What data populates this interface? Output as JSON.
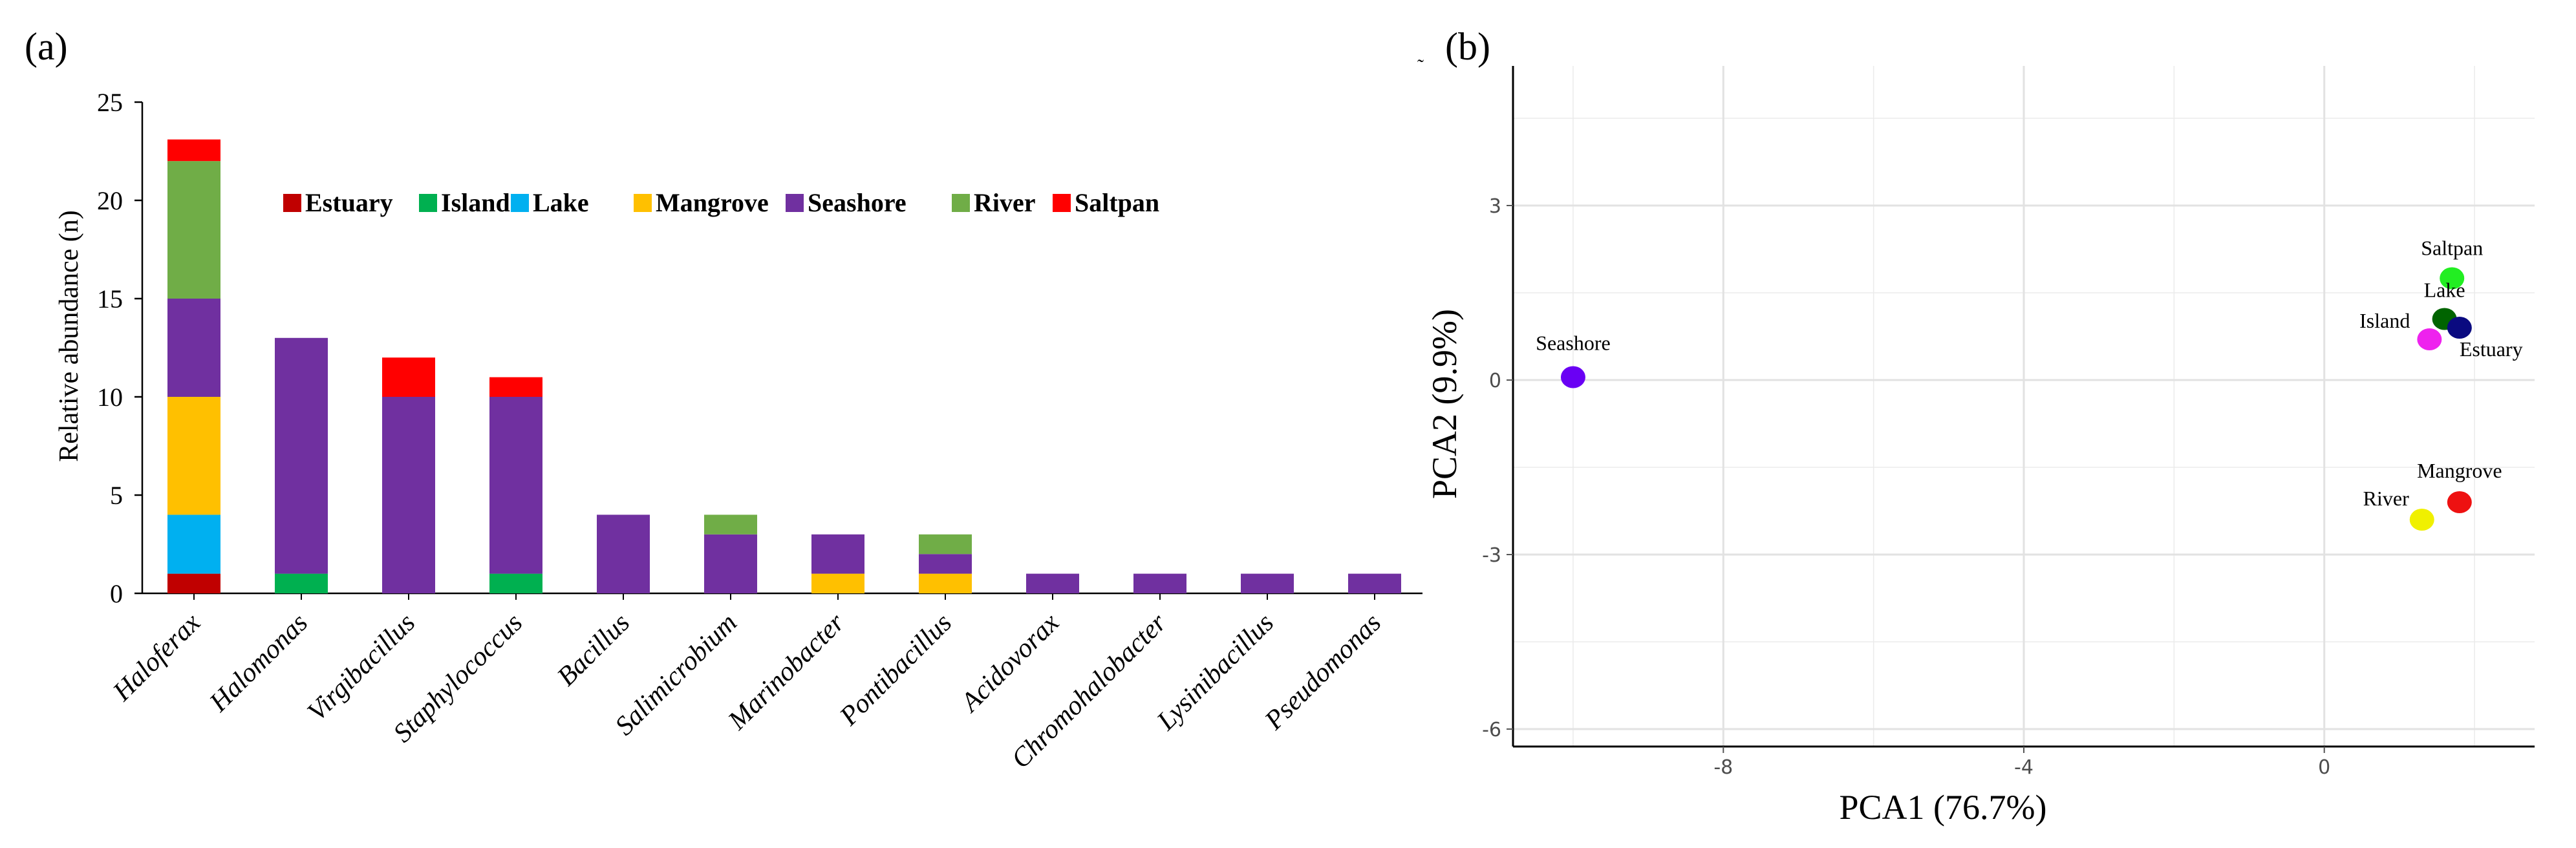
{
  "chart_data": [
    {
      "panel_label": "(a)",
      "type": "bar",
      "stacked": true,
      "ylabel": "Relative abundance (n)",
      "xlabel": "",
      "ylim": [
        0,
        25
      ],
      "yticks": [
        "0",
        "5",
        "10",
        "15",
        "20",
        "25"
      ],
      "legend_position": "top-right",
      "categories": [
        "Haloferax",
        "Halomonas",
        "Virgibacillus",
        "Staphylococcus",
        "Bacillus",
        "Salimicrobium",
        "Marinobacter",
        "Pontibacillus",
        "Acidovorax",
        "Chromohalobacter",
        "Lysinibacillus",
        "Pseudomonas"
      ],
      "series": [
        {
          "name": "Estuary",
          "color": "#c00000",
          "values": [
            1,
            0,
            0,
            0,
            0,
            0,
            0,
            0,
            0,
            0,
            0,
            0
          ]
        },
        {
          "name": "Island",
          "color": "#00b050",
          "values": [
            0,
            1,
            0,
            1,
            0,
            0,
            0,
            0,
            0,
            0,
            0,
            0
          ]
        },
        {
          "name": "Lake",
          "color": "#00b0f0",
          "values": [
            3,
            0,
            0,
            0,
            0,
            0,
            0,
            0,
            0,
            0,
            0,
            0
          ]
        },
        {
          "name": "Mangrove",
          "color": "#ffc000",
          "values": [
            6,
            0,
            0,
            0,
            0,
            0,
            1,
            1,
            0,
            0,
            0,
            0
          ]
        },
        {
          "name": "Seashore",
          "color": "#7030a0",
          "values": [
            5,
            12,
            10,
            9,
            4,
            3,
            2,
            1,
            1,
            1,
            1,
            1
          ]
        },
        {
          "name": "River",
          "color": "#70ad47",
          "values": [
            7,
            0,
            0,
            0,
            0,
            1,
            0,
            1,
            0,
            0,
            0,
            0
          ]
        },
        {
          "name": "Saltpan",
          "color": "#ff0000",
          "values": [
            1.1,
            0,
            2,
            1,
            0,
            0,
            0,
            0,
            0,
            0,
            0,
            0
          ]
        }
      ]
    },
    {
      "panel_label": "(b)",
      "type": "scatter",
      "xlabel": "PCA1 (76.7%)",
      "ylabel": "PCA2 (9.9%)",
      "xlim": [
        -10.8,
        2.8
      ],
      "ylim": [
        -6.3,
        5.4
      ],
      "xticks": [
        -8,
        -4,
        0
      ],
      "yticks": [
        3,
        0,
        -3,
        -6
      ],
      "xtick_labels": [
        "-8",
        "-4",
        "0"
      ],
      "ytick_labels": [
        "3",
        "0",
        "-3",
        "-6"
      ],
      "grid": true,
      "corner_mark": "˜",
      "points": [
        {
          "label": "Seashore",
          "x": -10.0,
          "y": 0.05,
          "color": "#6a00f4"
        },
        {
          "label": "Saltpan",
          "x": 1.7,
          "y": 1.75,
          "color": "#22ee22"
        },
        {
          "label": "Lake",
          "x": 1.6,
          "y": 1.05,
          "color": "#006400"
        },
        {
          "label": "Island",
          "x": 1.4,
          "y": 0.7,
          "color": "#ee22ee"
        },
        {
          "label": "Estuary",
          "x": 1.8,
          "y": 0.9,
          "color": "#0a0a80"
        },
        {
          "label": "Mangrove",
          "x": 1.8,
          "y": -2.1,
          "color": "#ee1111"
        },
        {
          "label": "River",
          "x": 1.3,
          "y": -2.4,
          "color": "#f0f000"
        }
      ]
    }
  ]
}
